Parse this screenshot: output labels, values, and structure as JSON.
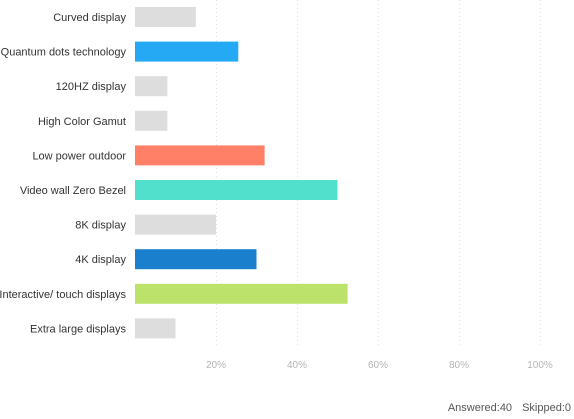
{
  "chart_data": {
    "type": "bar",
    "orientation": "horizontal",
    "categories": [
      "Curved display",
      "Quantum dots technology",
      "120HZ display",
      "High Color Gamut",
      "Low power outdoor",
      "Video wall Zero Bezel",
      "8K display",
      "4K display",
      "Interactive/ touch displays",
      "Extra large displays"
    ],
    "values": [
      15,
      25.5,
      8,
      8,
      32,
      50,
      20,
      30,
      52.5,
      10
    ],
    "colors": [
      "#dddddd",
      "#26a9f5",
      "#dddddd",
      "#dddddd",
      "#ff8066",
      "#50e0cc",
      "#dddddd",
      "#1a7fcc",
      "#bde26b",
      "#dddddd"
    ],
    "xlim": [
      0,
      100
    ],
    "xticks": [
      "20%",
      "40%",
      "60%",
      "80%",
      "100%"
    ],
    "xtick_values": [
      20,
      40,
      60,
      80,
      100
    ],
    "grid": true,
    "unit": "%"
  },
  "footer": {
    "answered_label": "Answered:",
    "answered_value": "40",
    "skipped_label": "Skipped:",
    "skipped_value": "0"
  }
}
